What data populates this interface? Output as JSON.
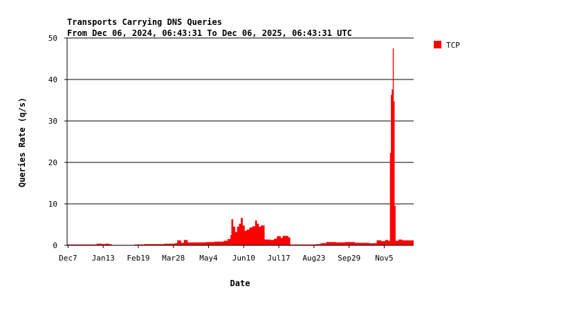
{
  "chart_data": {
    "type": "area",
    "title_line1": "Transports Carrying DNS Queries",
    "title_line2": "From Dec 06, 2024, 06:43:31 To Dec 06, 2025, 06:43:31 UTC",
    "xlabel": "Date",
    "ylabel": "Queries Rate (q/s)",
    "ylim": [
      0,
      50
    ],
    "yticks": [
      0,
      10,
      20,
      30,
      40,
      50
    ],
    "xlim": [
      "2024-12-06",
      "2025-12-06"
    ],
    "xticks": [
      {
        "label": "Dec7",
        "date": "2024-12-07"
      },
      {
        "label": "Jan13",
        "date": "2025-01-13"
      },
      {
        "label": "Feb19",
        "date": "2025-02-19"
      },
      {
        "label": "Mar28",
        "date": "2025-03-28"
      },
      {
        "label": "May4",
        "date": "2025-05-04"
      },
      {
        "label": "Jun10",
        "date": "2025-06-10"
      },
      {
        "label": "Jul17",
        "date": "2025-07-17"
      },
      {
        "label": "Aug23",
        "date": "2025-08-23"
      },
      {
        "label": "Sep29",
        "date": "2025-09-29"
      },
      {
        "label": "Nov5",
        "date": "2025-11-05"
      }
    ],
    "grid": true,
    "legend_position": "right",
    "series": [
      {
        "name": "TCP",
        "color": "#ff0000",
        "points": [
          [
            "2024-12-06",
            0.2
          ],
          [
            "2025-01-05",
            0.2
          ],
          [
            "2025-01-06",
            0.4
          ],
          [
            "2025-01-12",
            0.3
          ],
          [
            "2025-01-15",
            0.4
          ],
          [
            "2025-01-19",
            0.3
          ],
          [
            "2025-01-22",
            0.1
          ],
          [
            "2025-02-12",
            0.1
          ],
          [
            "2025-02-15",
            0.2
          ],
          [
            "2025-02-25",
            0.3
          ],
          [
            "2025-03-10",
            0.3
          ],
          [
            "2025-03-18",
            0.4
          ],
          [
            "2025-03-29",
            0.5
          ],
          [
            "2025-04-01",
            1.2
          ],
          [
            "2025-04-05",
            0.6
          ],
          [
            "2025-04-08",
            1.3
          ],
          [
            "2025-04-12",
            0.7
          ],
          [
            "2025-05-01",
            0.8
          ],
          [
            "2025-05-10",
            0.9
          ],
          [
            "2025-05-20",
            1.1
          ],
          [
            "2025-05-24",
            1.5
          ],
          [
            "2025-05-27",
            2.5
          ],
          [
            "2025-05-28",
            6.3
          ],
          [
            "2025-05-30",
            4.5
          ],
          [
            "2025-06-01",
            3.2
          ],
          [
            "2025-06-03",
            4.5
          ],
          [
            "2025-06-05",
            5.2
          ],
          [
            "2025-06-07",
            6.6
          ],
          [
            "2025-06-09",
            4.8
          ],
          [
            "2025-06-11",
            3.5
          ],
          [
            "2025-06-13",
            3.8
          ],
          [
            "2025-06-16",
            4.3
          ],
          [
            "2025-06-19",
            4.6
          ],
          [
            "2025-06-22",
            6.0
          ],
          [
            "2025-06-24",
            5.2
          ],
          [
            "2025-06-26",
            4.5
          ],
          [
            "2025-06-28",
            4.8
          ],
          [
            "2025-07-02",
            1.4
          ],
          [
            "2025-07-08",
            1.3
          ],
          [
            "2025-07-12",
            1.6
          ],
          [
            "2025-07-15",
            2.2
          ],
          [
            "2025-07-19",
            1.8
          ],
          [
            "2025-07-21",
            2.3
          ],
          [
            "2025-07-27",
            1.9
          ],
          [
            "2025-07-29",
            0.2
          ],
          [
            "2025-08-25",
            0.3
          ],
          [
            "2025-08-30",
            0.5
          ],
          [
            "2025-09-05",
            0.8
          ],
          [
            "2025-09-15",
            0.7
          ],
          [
            "2025-09-25",
            0.8
          ],
          [
            "2025-10-05",
            0.6
          ],
          [
            "2025-10-20",
            0.5
          ],
          [
            "2025-10-28",
            1.2
          ],
          [
            "2025-11-02",
            1.0
          ],
          [
            "2025-11-06",
            1.3
          ],
          [
            "2025-11-09",
            1.1
          ],
          [
            "2025-11-11",
            22.3
          ],
          [
            "2025-11-12",
            36.3
          ],
          [
            "2025-11-13",
            37.6
          ],
          [
            "2025-11-14",
            47.5
          ],
          [
            "2025-11-15",
            34.7
          ],
          [
            "2025-11-16",
            9.5
          ],
          [
            "2025-11-17",
            1.1
          ],
          [
            "2025-11-20",
            1.4
          ],
          [
            "2025-11-24",
            1.2
          ],
          [
            "2025-12-06",
            1.2
          ]
        ]
      }
    ]
  }
}
